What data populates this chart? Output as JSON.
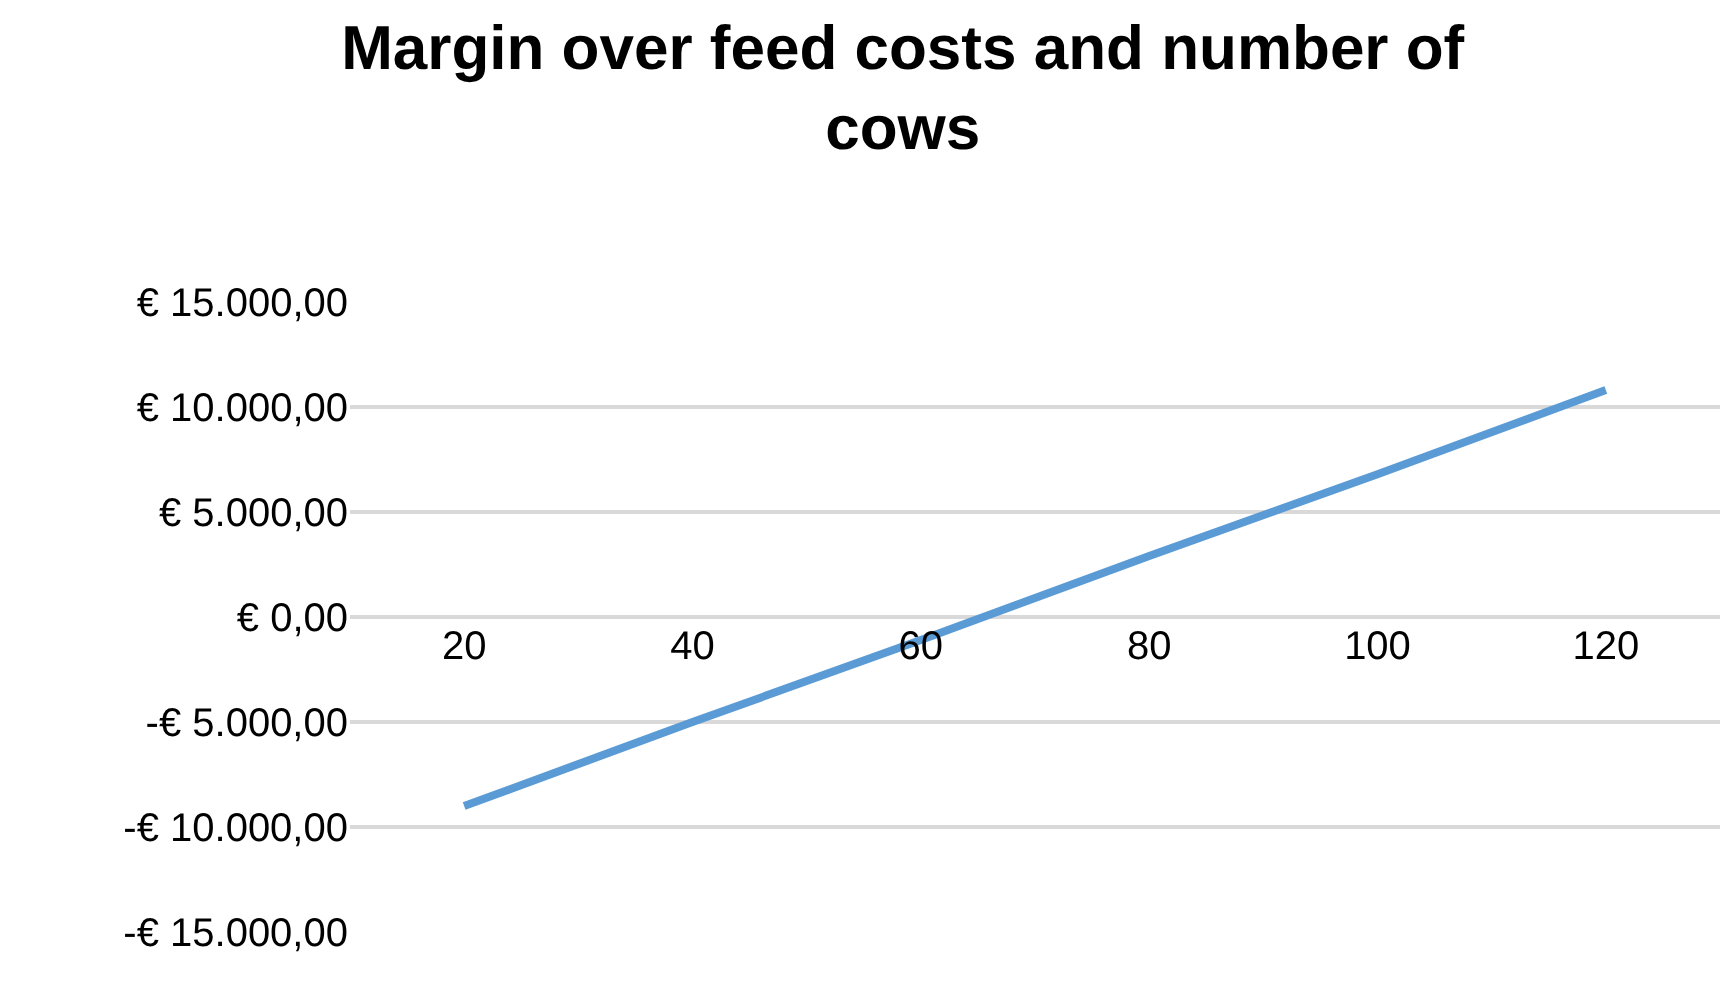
{
  "chart_data": {
    "type": "line",
    "title": "Margin over feed costs and number of cows",
    "categories": [
      "20",
      "40",
      "60",
      "80",
      "100",
      "120"
    ],
    "series": [
      {
        "color": "#5b9bd5",
        "values": [
          -9000,
          -5000,
          -1100,
          2900,
          6800,
          10800
        ]
      }
    ],
    "ylim": [
      -15000,
      15000
    ],
    "yticks": [
      {
        "value": -15000,
        "label": "-€ 15.000,00"
      },
      {
        "value": -10000,
        "label": "-€ 10.000,00"
      },
      {
        "value": -5000,
        "label": "-€ 5.000,00"
      },
      {
        "value": 0,
        "label": "€ 0,00"
      },
      {
        "value": 5000,
        "label": "€ 5.000,00"
      },
      {
        "value": 10000,
        "label": "€ 10.000,00"
      },
      {
        "value": 15000,
        "label": "€ 15.000,00"
      }
    ],
    "grid": "y",
    "marker": "none",
    "line_style": "solid"
  }
}
